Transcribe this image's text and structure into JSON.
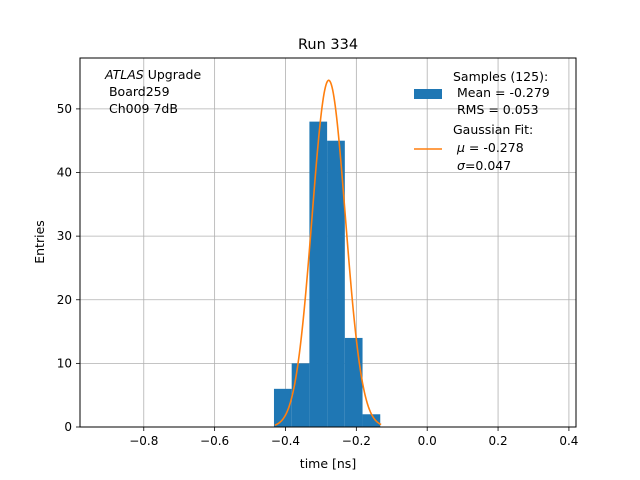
{
  "chart_data": {
    "type": "bar",
    "title": "Run 334",
    "xlabel": "time [ns]",
    "ylabel": "Entries",
    "xlim": [
      -0.98,
      0.42
    ],
    "ylim": [
      0,
      58
    ],
    "x_ticks": [
      -0.8,
      -0.6,
      -0.4,
      -0.2,
      0.0,
      0.2,
      0.4
    ],
    "x_tick_labels": [
      "−0.8",
      "−0.6",
      "−0.4",
      "−0.2",
      "0.0",
      "0.2",
      "0.4"
    ],
    "y_ticks": [
      0,
      10,
      20,
      30,
      40,
      50
    ],
    "y_tick_labels": [
      "0",
      "10",
      "20",
      "30",
      "40",
      "50"
    ],
    "grid": true,
    "histogram": {
      "name": "Samples (125):",
      "color": "#1f77b4",
      "bins": [
        {
          "x0": -0.4325,
          "x1": -0.3825,
          "count": 6
        },
        {
          "x0": -0.3825,
          "x1": -0.3325,
          "count": 10
        },
        {
          "x0": -0.3325,
          "x1": -0.2825,
          "count": 48
        },
        {
          "x0": -0.2825,
          "x1": -0.2325,
          "count": 45
        },
        {
          "x0": -0.2325,
          "x1": -0.1825,
          "count": 14
        },
        {
          "x0": -0.1825,
          "x1": -0.1325,
          "count": 2
        }
      ]
    },
    "fit": {
      "name": "Gaussian Fit:",
      "color": "#ff7f0e",
      "mu": -0.278,
      "sigma": 0.047,
      "amplitude": 54.5,
      "x_range": [
        -0.43,
        -0.13
      ]
    },
    "annotation": {
      "italic": "ATLAS",
      "rest": " Upgrade",
      "line2": " Board259",
      "line3": " Ch009 7dB"
    },
    "legend": {
      "placement": "top-right",
      "hist_line2": " Mean = -0.279",
      "hist_line3": " RMS = 0.053",
      "fit_mu_symbol": "μ",
      "fit_mu_text": " = -0.278",
      "fit_sigma_symbol": "σ",
      "fit_sigma_text": "=0.047"
    }
  }
}
